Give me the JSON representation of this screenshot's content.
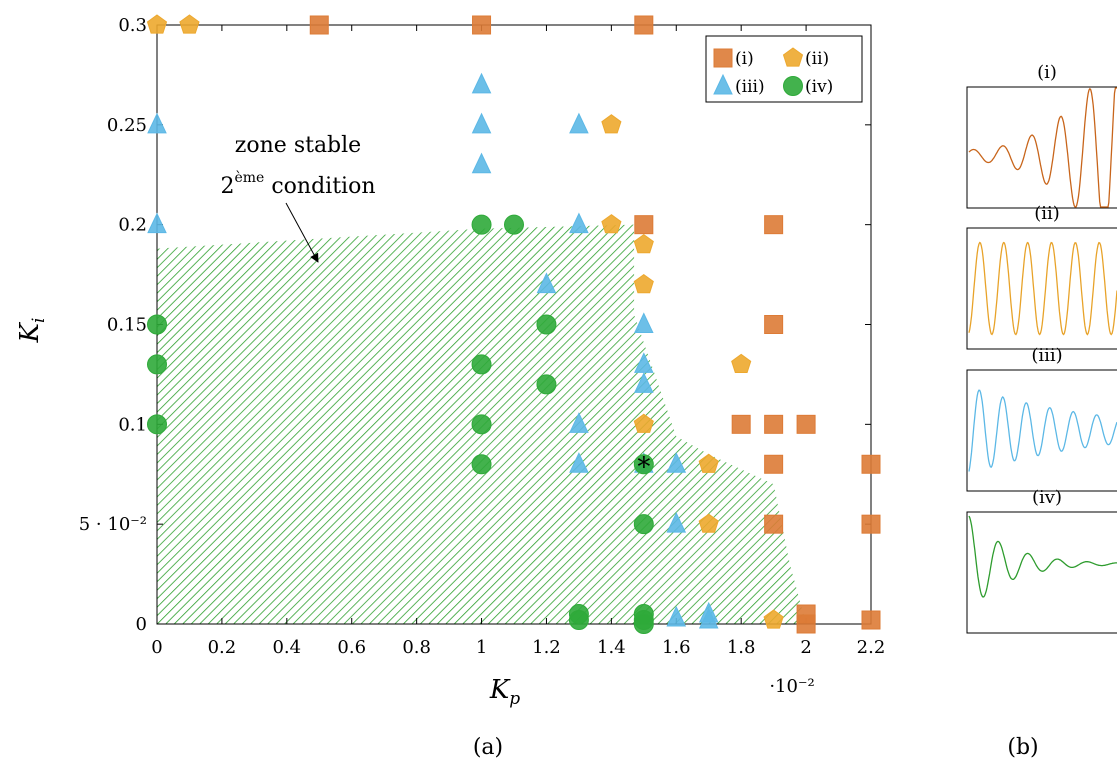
{
  "chart_data": [
    {
      "panel_label": "(a)",
      "type": "scatter",
      "xlabel": "K_p",
      "ylabel": "K_i",
      "x_multiplier": "·10⁻²",
      "xlim": [
        0,
        2.2
      ],
      "ylim": [
        0,
        0.3
      ],
      "xticks": [
        "0",
        "0.2",
        "0.4",
        "0.6",
        "0.8",
        "1",
        "1.2",
        "1.4",
        "1.6",
        "1.8",
        "2",
        "2.2"
      ],
      "yticks": [
        "0",
        "5 · 10⁻²",
        "0.1",
        "0.15",
        "0.2",
        "0.25",
        "0.3"
      ],
      "legend_position": "top-right",
      "annotation": {
        "line1": "zone stable",
        "line2_base": "2",
        "line2_sup": "ème",
        "line2_rest": " condition",
        "target_x": 0.5,
        "target_y": 0.18
      },
      "stable_zone": [
        [
          0,
          0
        ],
        [
          0,
          0.188
        ],
        [
          1,
          0.198
        ],
        [
          1.47,
          0.2
        ],
        [
          1.47,
          0.155
        ],
        [
          1.6,
          0.094
        ],
        [
          1.7,
          0.085
        ],
        [
          1.9,
          0.07
        ],
        [
          1.95,
          0.03
        ],
        [
          2.0,
          0
        ],
        [
          0,
          0
        ]
      ],
      "special_marker": {
        "x": 1.5,
        "y": 0.08,
        "symbol": "*"
      },
      "series": [
        {
          "name": "(i)",
          "marker": "square",
          "color": "#DD7B36",
          "points": [
            [
              0.5,
              0.3
            ],
            [
              1,
              0.3
            ],
            [
              1.5,
              0.3
            ],
            [
              1.5,
              0.2
            ],
            [
              1.9,
              0.2
            ],
            [
              1.9,
              0.15
            ],
            [
              1.8,
              0.1
            ],
            [
              1.9,
              0.1
            ],
            [
              2,
              0.1
            ],
            [
              1.9,
              0.08
            ],
            [
              2.2,
              0.08
            ],
            [
              1.9,
              0.05
            ],
            [
              2.2,
              0.05
            ],
            [
              2,
              0.005
            ],
            [
              2,
              0
            ],
            [
              2.2,
              0.002
            ]
          ]
        },
        {
          "name": "(ii)",
          "marker": "pentagon",
          "color": "#EDA82E",
          "points": [
            [
              0,
              0.3
            ],
            [
              0.1,
              0.3
            ],
            [
              1.4,
              0.25
            ],
            [
              1.4,
              0.2
            ],
            [
              1.5,
              0.19
            ],
            [
              1.5,
              0.17
            ],
            [
              1.8,
              0.13
            ],
            [
              1.5,
              0.1
            ],
            [
              1.7,
              0.08
            ],
            [
              1.7,
              0.05
            ],
            [
              1.9,
              0.002
            ]
          ]
        },
        {
          "name": "(iii)",
          "marker": "triangle",
          "color": "#5CB8E6",
          "points": [
            [
              1,
              0.27
            ],
            [
              1,
              0.25
            ],
            [
              1,
              0.23
            ],
            [
              0,
              0.25
            ],
            [
              0,
              0.2
            ],
            [
              1.3,
              0.25
            ],
            [
              1.3,
              0.2
            ],
            [
              1.3,
              0.1
            ],
            [
              1.3,
              0.08
            ],
            [
              1.2,
              0.17
            ],
            [
              1.5,
              0.15
            ],
            [
              1.5,
              0.13
            ],
            [
              1.5,
              0.12
            ],
            [
              1.5,
              0.08
            ],
            [
              1.6,
              0.08
            ],
            [
              1.6,
              0.05
            ],
            [
              1.6,
              0.003
            ],
            [
              1.7,
              0.005
            ],
            [
              1.7,
              0.002
            ]
          ]
        },
        {
          "name": "(iv)",
          "marker": "circle",
          "color": "#2FAA3A",
          "points": [
            [
              1,
              0.2
            ],
            [
              1.1,
              0.2
            ],
            [
              1.2,
              0.15
            ],
            [
              1.2,
              0.12
            ],
            [
              1,
              0.13
            ],
            [
              1,
              0.1
            ],
            [
              1,
              0.08
            ],
            [
              0,
              0.15
            ],
            [
              0,
              0.13
            ],
            [
              0,
              0.1
            ],
            [
              1.5,
              0.08
            ],
            [
              1.5,
              0.05
            ],
            [
              1.3,
              0.005
            ],
            [
              1.3,
              0.002
            ],
            [
              1.5,
              0.005
            ],
            [
              1.5,
              0.002
            ],
            [
              1.5,
              0
            ]
          ]
        }
      ]
    },
    {
      "panel_label": "(b)",
      "type": "line",
      "panels": [
        {
          "label": "(i)",
          "color": "#C8651B",
          "behaviour": "growing oscillation"
        },
        {
          "label": "(ii)",
          "color": "#E8A32A",
          "behaviour": "sustained oscillation"
        },
        {
          "label": "(iii)",
          "color": "#5CB8E6",
          "behaviour": "slowly decaying oscillation"
        },
        {
          "label": "(iv)",
          "color": "#2E9C2E",
          "behaviour": "quickly damped response"
        }
      ]
    }
  ]
}
